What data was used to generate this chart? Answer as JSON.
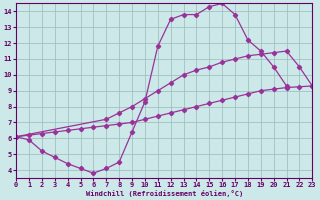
{
  "xlabel": "Windchill (Refroidissement éolien,°C)",
  "xlim": [
    0,
    23
  ],
  "ylim": [
    3.5,
    14.5
  ],
  "yticks": [
    4,
    5,
    6,
    7,
    8,
    9,
    10,
    11,
    12,
    13,
    14
  ],
  "xticks": [
    0,
    1,
    2,
    3,
    4,
    5,
    6,
    7,
    8,
    9,
    10,
    11,
    12,
    13,
    14,
    15,
    16,
    17,
    18,
    19,
    20,
    21,
    22,
    23
  ],
  "background_color": "#cce8e8",
  "line_color": "#993399",
  "grid_color": "#99bbbb",
  "curve1_x": [
    0,
    1,
    2,
    3,
    4,
    5,
    6,
    7,
    8,
    9,
    10,
    11,
    12,
    13,
    14,
    15,
    16,
    17,
    18,
    19,
    20,
    21
  ],
  "curve1_y": [
    6.1,
    5.9,
    5.2,
    4.8,
    4.4,
    4.1,
    3.8,
    4.1,
    4.5,
    6.4,
    8.3,
    11.8,
    13.5,
    13.8,
    13.8,
    14.3,
    14.5,
    13.8,
    12.2,
    11.5,
    10.5,
    9.3
  ],
  "curve2_x": [
    0,
    1,
    2,
    3,
    4,
    5,
    6,
    7,
    8,
    9,
    10,
    11,
    12,
    13,
    14,
    15,
    16,
    17,
    18,
    19,
    20,
    21,
    22,
    23
  ],
  "curve2_y": [
    6.1,
    6.2,
    6.3,
    6.4,
    6.5,
    6.6,
    6.7,
    6.8,
    6.9,
    7.0,
    7.2,
    7.4,
    7.6,
    7.8,
    8.0,
    8.2,
    8.4,
    8.6,
    8.8,
    9.0,
    9.1,
    9.2,
    9.25,
    9.3
  ],
  "curve3_x": [
    0,
    7,
    8,
    9,
    10,
    11,
    12,
    13,
    14,
    15,
    16,
    17,
    18,
    19,
    20,
    21,
    22,
    23
  ],
  "curve3_y": [
    6.1,
    7.2,
    7.6,
    8.0,
    8.5,
    9.0,
    9.5,
    10.0,
    10.3,
    10.5,
    10.8,
    11.0,
    11.2,
    11.3,
    11.4,
    11.5,
    10.5,
    9.3
  ]
}
